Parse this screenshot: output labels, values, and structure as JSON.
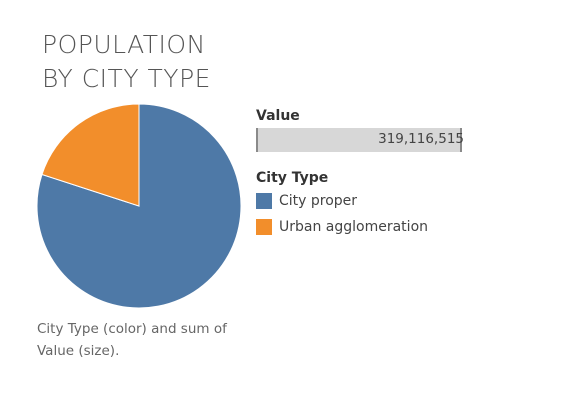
{
  "chart_data": {
    "type": "pie",
    "title_lines": [
      "POPULATION",
      "BY CITY TYPE"
    ],
    "slices": [
      {
        "label": "City proper",
        "fraction": 0.8,
        "color": "#4e79a7"
      },
      {
        "label": "Urban agglomeration",
        "fraction": 0.2,
        "color": "#f28e2b"
      }
    ],
    "size_legend": {
      "heading": "Value",
      "value": "319,116,515"
    },
    "color_legend": {
      "heading": "City Type"
    },
    "caption": "City Type (color) and sum of Value (size)."
  }
}
